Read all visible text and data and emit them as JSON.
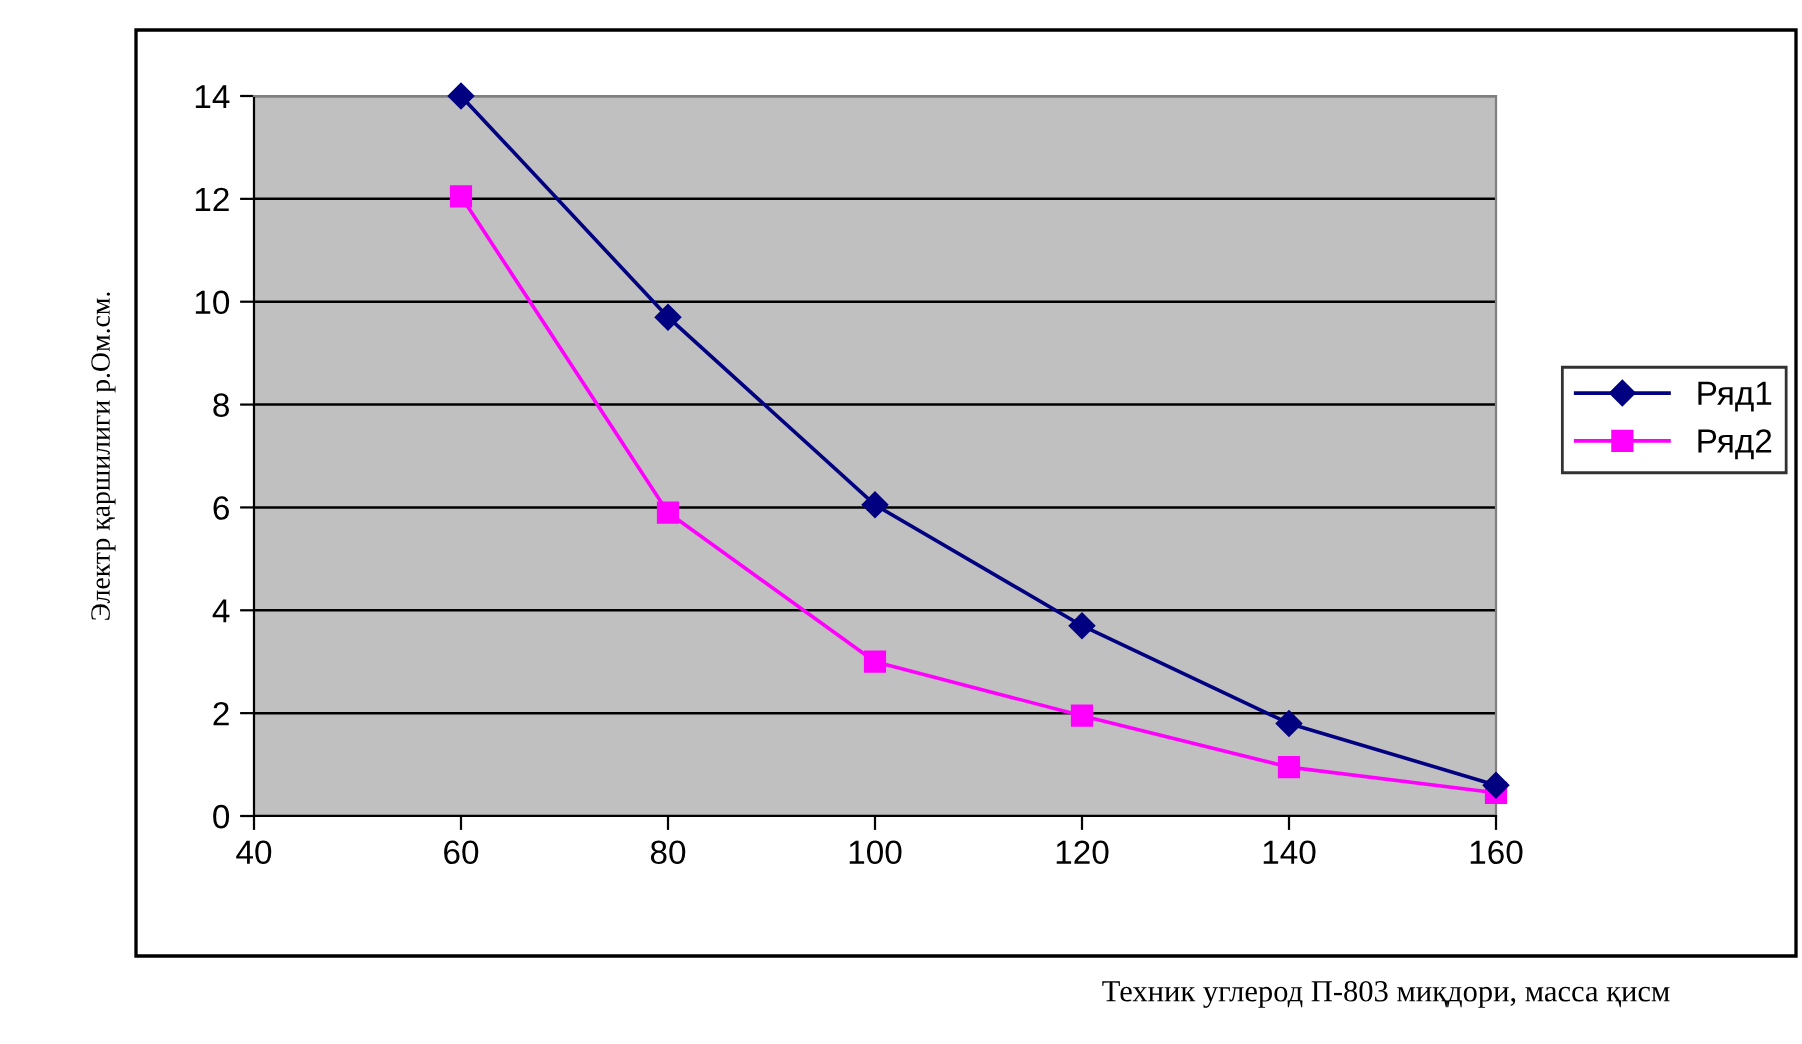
{
  "chart_data": {
    "type": "line",
    "xlabel": "Техник углерод П-803 миқдори, масса қисм",
    "ylabel": "Электр қаршилиги р.Ом.см.",
    "x": [
      60,
      80,
      100,
      120,
      140,
      160
    ],
    "series": [
      {
        "name": "Ряд1",
        "color": "#000080",
        "values": [
          14,
          9.7,
          6.05,
          3.7,
          1.8,
          0.6
        ],
        "marker": "diamond"
      },
      {
        "name": "Ряд2",
        "color": "#ff00ff",
        "values": [
          12.05,
          5.9,
          3.0,
          1.95,
          0.95,
          0.45
        ],
        "marker": "square"
      }
    ],
    "xlim": [
      40,
      160
    ],
    "xticks": [
      40,
      60,
      80,
      100,
      120,
      140,
      160
    ],
    "ylim": [
      0,
      14
    ],
    "yticks": [
      0,
      2,
      4,
      6,
      8,
      10,
      12,
      14
    ],
    "grid": "y",
    "legend": "right",
    "line_style": "solid"
  }
}
